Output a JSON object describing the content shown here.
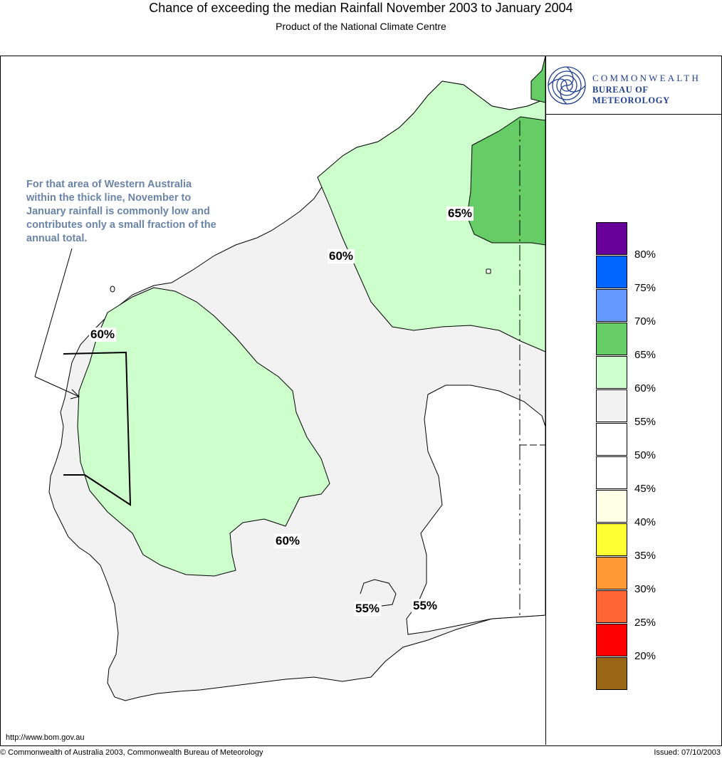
{
  "title": "Chance of exceeding the median Rainfall November 2003 to January 2004",
  "subtitle": "Product of the National Climate Centre",
  "logo": {
    "line1": "COMMONWEALTH",
    "line2": "BUREAU OF METEOROLOGY",
    "icon": "bom-swirl-icon"
  },
  "note": "For that area of Western Australia within the thick line, November to January rainfall is commonly low and contributes only a small fraction of the annual total.",
  "map_labels": {
    "north_65": "65%",
    "north_60": "60%",
    "west_60": "60%",
    "central_60": "60%",
    "south_55a": "55%",
    "south_55b": "55%"
  },
  "legend": [
    {
      "label": "80%",
      "color": "#660099"
    },
    {
      "label": "75%",
      "color": "#0066ff"
    },
    {
      "label": "70%",
      "color": "#6699ff"
    },
    {
      "label": "65%",
      "color": "#66cc66"
    },
    {
      "label": "60%",
      "color": "#ccffcc"
    },
    {
      "label": "55%",
      "color": "#f2f2f2"
    },
    {
      "label": "50%",
      "color": "#ffffff"
    },
    {
      "label": "45%",
      "color": "#ffffff"
    },
    {
      "label": "40%",
      "color": "#ffffe6"
    },
    {
      "label": "35%",
      "color": "#ffff33"
    },
    {
      "label": "30%",
      "color": "#ff9933"
    },
    {
      "label": "25%",
      "color": "#ff6633"
    },
    {
      "label": "20%",
      "color": "#ff0000"
    },
    {
      "label": "",
      "color": "#996617"
    }
  ],
  "url": "http://www.bom.gov.au",
  "footer": {
    "copyright": "© Commonwealth of Australia 2003, Commonwealth Bureau of Meteorology",
    "issued": "Issued: 07/10/2003"
  }
}
